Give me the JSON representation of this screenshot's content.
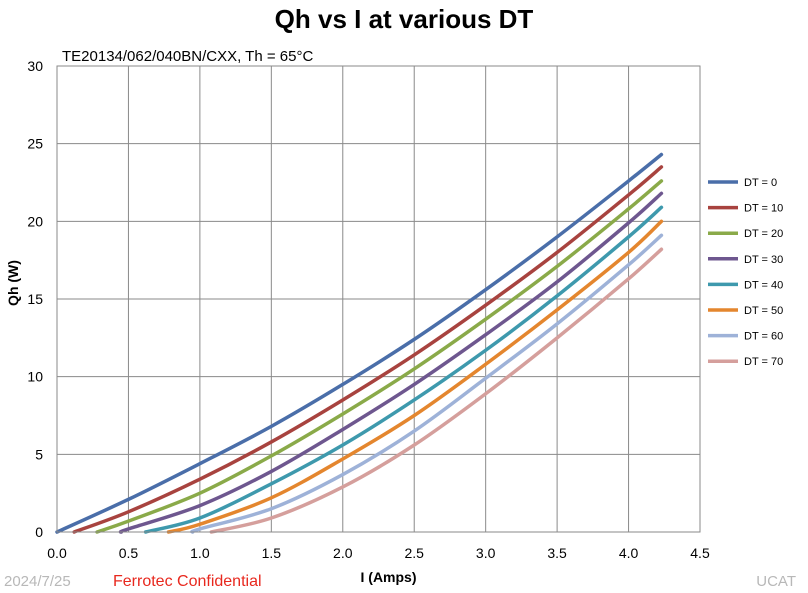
{
  "header": {
    "title": "Qh vs I at various DT",
    "subtitle": "TE20134/062/040BN/CXX, Th = 65°C"
  },
  "footer": {
    "date": "2024/7/25",
    "confidential": "Ferrotec Confidential",
    "org": "UCAT"
  },
  "chart_data": {
    "type": "line",
    "title": "Qh vs I at various DT",
    "subtitle": "TE20134/062/040BN/CXX, Th = 65°C",
    "xlabel": "I (Amps)",
    "ylabel": "Qh (W)",
    "xlim": [
      0,
      4.5
    ],
    "ylim": [
      0,
      30
    ],
    "xticks": [
      0.0,
      0.5,
      1.0,
      1.5,
      2.0,
      2.5,
      3.0,
      3.5,
      4.0,
      4.5
    ],
    "xtick_labels": [
      "0.0",
      "0.5",
      "1.0",
      "1.5",
      "2.0",
      "2.5",
      "3.0",
      "3.5",
      "4.0",
      "4.5"
    ],
    "yticks": [
      0,
      5,
      10,
      15,
      20,
      25,
      30
    ],
    "ytick_labels": [
      "0",
      "5",
      "10",
      "15",
      "20",
      "25",
      "30"
    ],
    "grid": true,
    "legend_position": "right",
    "series": [
      {
        "name": "DT = 0",
        "color": "#4a6ea9",
        "x": [
          0.0,
          0.5,
          1.0,
          1.5,
          2.0,
          2.5,
          3.0,
          3.5,
          4.0,
          4.23
        ],
        "y": [
          0.0,
          2.1,
          4.4,
          6.8,
          9.5,
          12.4,
          15.6,
          19.0,
          22.6,
          24.3
        ]
      },
      {
        "name": "DT = 10",
        "color": "#a8433f",
        "x": [
          0.12,
          0.5,
          1.0,
          1.5,
          2.0,
          2.5,
          3.0,
          3.5,
          4.0,
          4.23
        ],
        "y": [
          0.0,
          1.3,
          3.4,
          5.8,
          8.5,
          11.4,
          14.6,
          18.0,
          21.7,
          23.5
        ]
      },
      {
        "name": "DT = 20",
        "color": "#8aaa49",
        "x": [
          0.28,
          0.5,
          1.0,
          1.5,
          2.0,
          2.5,
          3.0,
          3.5,
          4.0,
          4.23
        ],
        "y": [
          0.0,
          0.7,
          2.5,
          4.9,
          7.6,
          10.5,
          13.7,
          17.1,
          20.8,
          22.6
        ]
      },
      {
        "name": "DT = 30",
        "color": "#6e578f",
        "x": [
          0.45,
          0.5,
          1.0,
          1.5,
          2.0,
          2.5,
          3.0,
          3.5,
          4.0,
          4.23
        ],
        "y": [
          0.0,
          0.2,
          1.7,
          3.9,
          6.6,
          9.5,
          12.7,
          16.1,
          19.9,
          21.8
        ]
      },
      {
        "name": "DT = 40",
        "color": "#3e99ad",
        "x": [
          0.62,
          1.0,
          1.5,
          2.0,
          2.5,
          3.0,
          3.5,
          4.0,
          4.23
        ],
        "y": [
          0.0,
          0.9,
          3.1,
          5.6,
          8.5,
          11.7,
          15.2,
          19.0,
          20.9
        ]
      },
      {
        "name": "DT = 50",
        "color": "#e4862e",
        "x": [
          0.78,
          1.0,
          1.5,
          2.0,
          2.5,
          3.0,
          3.5,
          4.0,
          4.23
        ],
        "y": [
          0.0,
          0.5,
          2.2,
          4.7,
          7.5,
          10.8,
          14.3,
          18.0,
          20.0
        ]
      },
      {
        "name": "DT = 60",
        "color": "#9eb2d8",
        "x": [
          0.95,
          1.0,
          1.5,
          2.0,
          2.5,
          3.0,
          3.5,
          4.0,
          4.23
        ],
        "y": [
          0.0,
          0.2,
          1.5,
          3.7,
          6.5,
          9.9,
          13.4,
          17.2,
          19.1
        ]
      },
      {
        "name": "DT = 70",
        "color": "#d59f9c",
        "x": [
          1.08,
          1.5,
          2.0,
          2.5,
          3.0,
          3.5,
          4.0,
          4.23
        ],
        "y": [
          0.0,
          0.9,
          2.9,
          5.6,
          8.9,
          12.5,
          16.3,
          18.2
        ]
      }
    ]
  }
}
